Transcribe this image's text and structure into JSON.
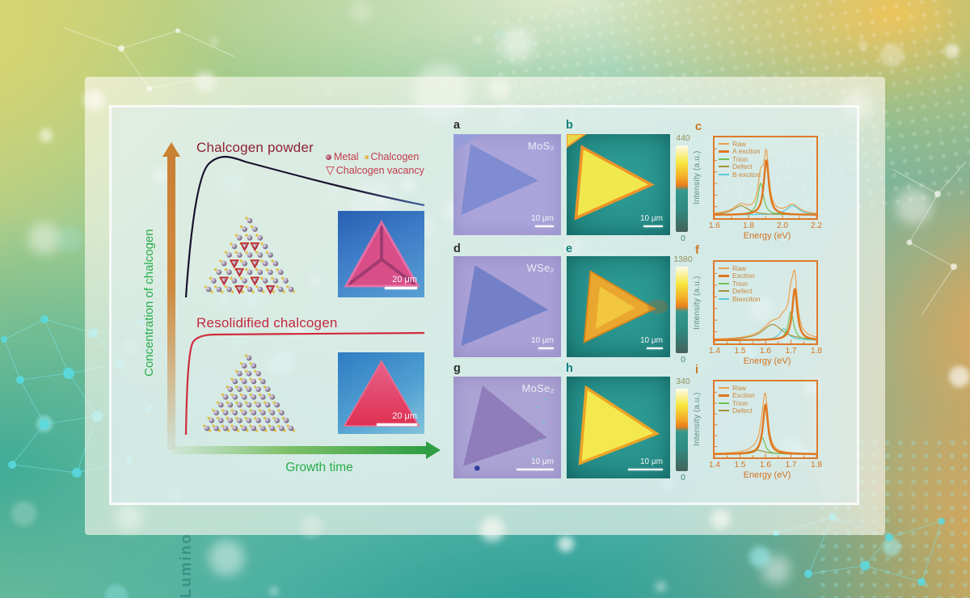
{
  "watermark": "Lumino",
  "schematic": {
    "curve1_label": "Chalcogen powder",
    "curve2_label": "Resolidified chalcogen",
    "ylabel": "Concentration of chalcogen",
    "xlabel": "Growth time",
    "legend": {
      "metal": "Metal",
      "chalcogen": "Chalcogen",
      "vacancy": "Chalcogen vacancy"
    },
    "micrograph1_scalebar": "20 μm",
    "micrograph2_scalebar": "20 μm"
  },
  "panels": {
    "a": {
      "label": "a",
      "material": "MoS₂",
      "scalebar": "10 μm"
    },
    "b": {
      "label": "b",
      "scalebar": "10 μm",
      "colorbar_max": "440",
      "colorbar_min": "0"
    },
    "c": {
      "label": "c"
    },
    "d": {
      "label": "d",
      "material": "WSe₂",
      "scalebar": "10 μm"
    },
    "e": {
      "label": "e",
      "scalebar": "10 μm",
      "colorbar_max": "1380",
      "colorbar_min": "0"
    },
    "f": {
      "label": "f"
    },
    "g": {
      "label": "g",
      "material": "MoSe₂",
      "scalebar": "10 μm"
    },
    "h": {
      "label": "h",
      "scalebar": "10 μm",
      "colorbar_max": "340",
      "colorbar_min": "0"
    },
    "i": {
      "label": "i"
    }
  },
  "colors": {
    "optical_label": "#2f2f2f",
    "map_label": "#0f8379",
    "spectrum_label": "#c97620",
    "frame": "#dd7a2b",
    "axis_green": "#2aad4a",
    "curve_powder": "#1a1228",
    "curve_resolidified": "#d12c3c"
  },
  "chart_data": [
    {
      "id": "schematic",
      "type": "line",
      "xlabel": "Growth time",
      "ylabel": "Concentration of chalcogen",
      "series": [
        {
          "name": "Chalcogen powder",
          "shape": "fast rise then slow decay",
          "color": "#1a1228"
        },
        {
          "name": "Resolidified chalcogen",
          "shape": "fast rise then constant plateau",
          "color": "#d12c3c"
        }
      ]
    },
    {
      "id": "c",
      "type": "line",
      "material": "MoS₂",
      "xlabel": "Energy (eV)",
      "ylabel": "Intensity (a.u.)",
      "xlim": [
        1.6,
        2.2
      ],
      "xticks": [
        "1.6",
        "1.8",
        "2.0",
        "2.2"
      ],
      "series": [
        {
          "name": "Raw",
          "color": "#eda04b",
          "lw": 1.2,
          "composite": true
        },
        {
          "name": "A exciton",
          "color": "#e0761f",
          "lw": 2.4,
          "center": 1.905,
          "hwhm": 0.018,
          "amplitude": 0.78
        },
        {
          "name": "Trion",
          "color": "#71c055",
          "lw": 1.2,
          "center": 1.872,
          "hwhm": 0.02,
          "amplitude": 0.45
        },
        {
          "name": "Defect",
          "color": "#a8913c",
          "lw": 1.2,
          "center": 1.755,
          "hwhm": 0.055,
          "amplitude": 0.13
        },
        {
          "name": "B exciton",
          "color": "#5ac9d8",
          "lw": 1.2,
          "center": 2.06,
          "hwhm": 0.045,
          "amplitude": 0.13
        }
      ]
    },
    {
      "id": "f",
      "type": "line",
      "material": "WSe₂",
      "xlabel": "Energy (eV)",
      "ylabel": "Intensity (a.u.)",
      "xlim": [
        1.4,
        1.8
      ],
      "xticks": [
        "1.4",
        "1.5",
        "1.6",
        "1.7",
        "1.8"
      ],
      "series": [
        {
          "name": "Raw",
          "color": "#eda04b",
          "lw": 1.2,
          "composite": true
        },
        {
          "name": "Exciton",
          "color": "#e0761f",
          "lw": 2.4,
          "center": 1.715,
          "hwhm": 0.012,
          "amplitude": 0.72
        },
        {
          "name": "Trion",
          "color": "#71c055",
          "lw": 1.2,
          "center": 1.7,
          "hwhm": 0.013,
          "amplitude": 0.4
        },
        {
          "name": "Defect",
          "color": "#a8913c",
          "lw": 1.2,
          "center": 1.628,
          "hwhm": 0.048,
          "amplitude": 0.22
        },
        {
          "name": "Biexciton",
          "color": "#5ac9d8",
          "lw": 1.2,
          "center": 1.672,
          "hwhm": 0.02,
          "amplitude": 0.16
        }
      ]
    },
    {
      "id": "i",
      "type": "line",
      "material": "MoSe₂",
      "xlabel": "Energy (eV)",
      "ylabel": "Intensity (a.u.)",
      "xlim": [
        1.4,
        1.8
      ],
      "xticks": [
        "1.4",
        "1.5",
        "1.6",
        "1.7",
        "1.8"
      ],
      "series": [
        {
          "name": "Raw",
          "color": "#eda04b",
          "lw": 1.2,
          "composite": true
        },
        {
          "name": "Exciton",
          "color": "#e0761f",
          "lw": 2.4,
          "center": 1.6,
          "hwhm": 0.012,
          "amplitude": 0.76
        },
        {
          "name": "Trion",
          "color": "#71c055",
          "lw": 1.2,
          "center": 1.588,
          "hwhm": 0.013,
          "amplitude": 0.25
        },
        {
          "name": "Defect",
          "color": "#a8913c",
          "lw": 1.2,
          "center": 1.565,
          "hwhm": 0.04,
          "amplitude": 0.06
        }
      ]
    }
  ]
}
